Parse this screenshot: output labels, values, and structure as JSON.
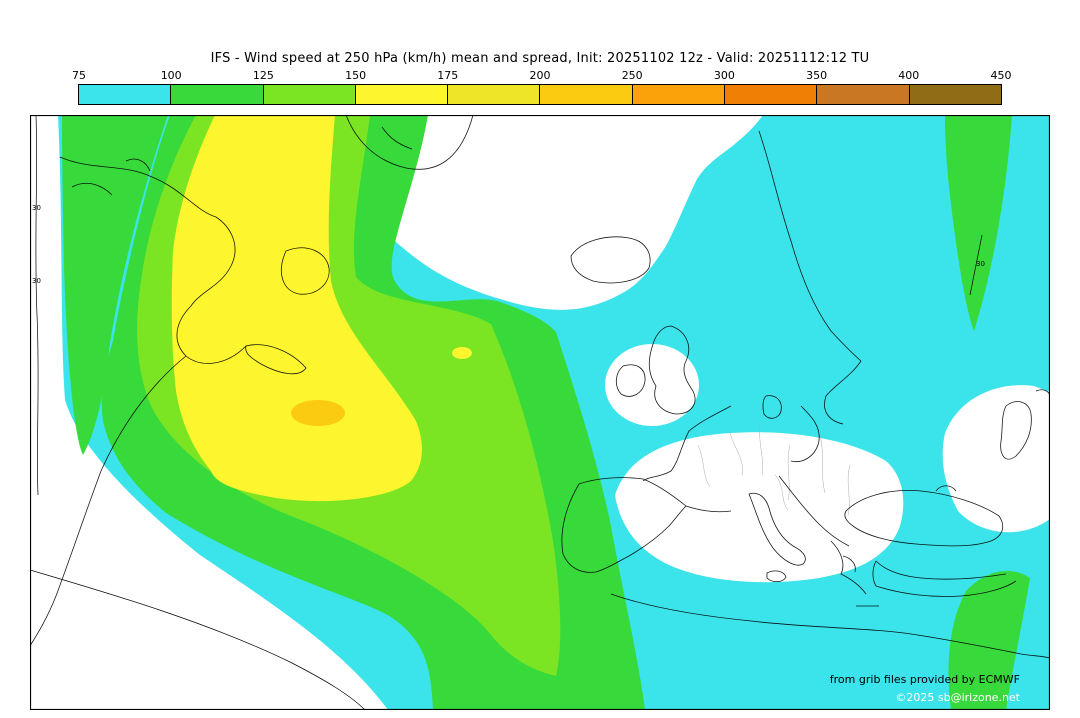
{
  "header": {
    "title": "IFS - Wind speed at 250 hPa (km/h) mean and spread, Init: 20251102 12z - Valid: 20251112:12 TU"
  },
  "palette": {
    "levels": [
      "75",
      "100",
      "125",
      "150",
      "175",
      "200",
      "250",
      "300",
      "350",
      "400",
      "450"
    ],
    "colors": [
      "#3BE3EA",
      "#38DA3B",
      "#7CE523",
      "#FDF62E",
      "#EFE528",
      "#FBCB11",
      "#FBA109",
      "#F08005",
      "#C97722",
      "#906C17"
    ],
    "below_color": "#FFFFFF"
  },
  "map": {
    "contour_labels": [
      {
        "text": "30"
      },
      {
        "text": "30"
      },
      {
        "text": "30"
      }
    ],
    "coastline_color": "#000000"
  },
  "credits": {
    "line1": "from grib files provided by ECMWF",
    "line2": "©2025 sb@irizone.net",
    "line2_color": "#FFFFFF"
  }
}
